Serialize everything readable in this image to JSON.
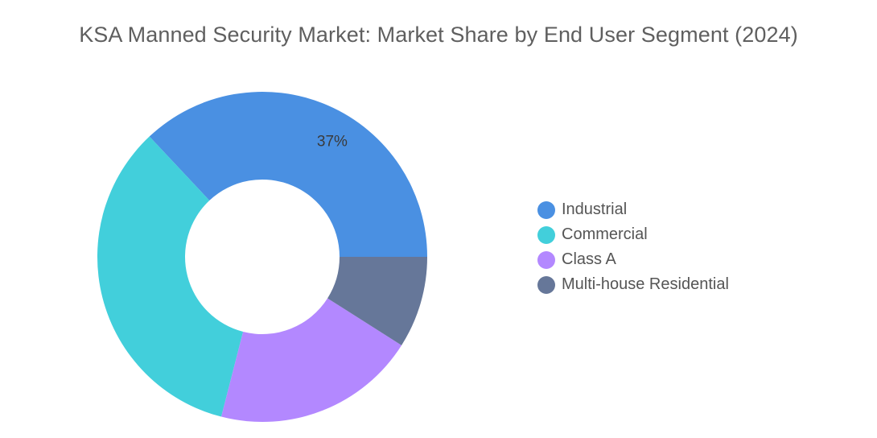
{
  "chart_data": {
    "type": "pie",
    "title": "KSA Manned Security Market: Market Share by End User Segment (2024)",
    "categories": [
      "Industrial",
      "Commercial",
      "Class A",
      "Multi-house Residential"
    ],
    "values": [
      37,
      34,
      20,
      9
    ],
    "data_labels": [
      "37%",
      "",
      "",
      ""
    ],
    "colors": [
      "#4a90e2",
      "#42cfdb",
      "#b388ff",
      "#667799"
    ],
    "legend_position": "right",
    "donut": true
  }
}
